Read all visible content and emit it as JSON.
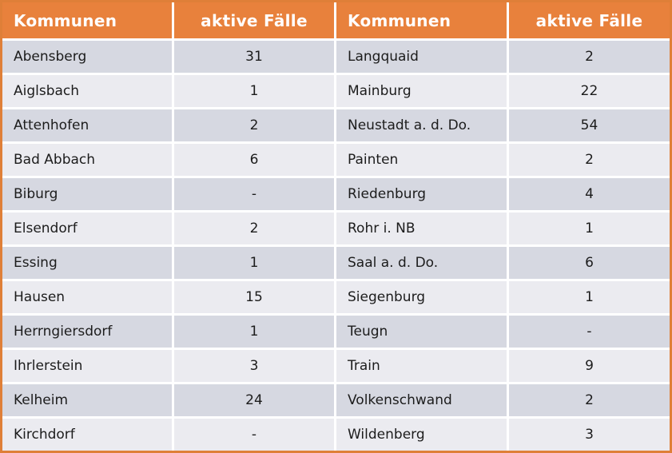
{
  "chart_data": {
    "type": "table",
    "title": "",
    "columns": [
      "Kommunen",
      "aktive Fälle",
      "Kommunen",
      "aktive Fälle"
    ],
    "rows": [
      [
        "Abensberg",
        "31",
        "Langquaid",
        "2"
      ],
      [
        "Aiglsbach",
        "1",
        "Mainburg",
        "22"
      ],
      [
        "Attenhofen",
        "2",
        "Neustadt a. d. Do.",
        "54"
      ],
      [
        "Bad Abbach",
        "6",
        "Painten",
        "2"
      ],
      [
        "Biburg",
        "-",
        "Riedenburg",
        "4"
      ],
      [
        "Elsendorf",
        "2",
        "Rohr i. NB",
        "1"
      ],
      [
        "Essing",
        "1",
        "Saal a. d. Do.",
        "6"
      ],
      [
        "Hausen",
        "15",
        "Siegenburg",
        "1"
      ],
      [
        "Herrngiersdorf",
        "1",
        "Teugn",
        "-"
      ],
      [
        "Ihrlerstein",
        "3",
        "Train",
        "9"
      ],
      [
        "Kelheim",
        "24",
        "Volkenschwand",
        "2"
      ],
      [
        "Kirchdorf",
        "-",
        "Wildenberg",
        "3"
      ]
    ]
  },
  "colors": {
    "header_bg": "#E8813C",
    "header_text": "#FFFFFF",
    "row_dark": "#D6D8E1",
    "row_light": "#EBEBF0",
    "border": "#DF7F38",
    "text": "#1C1C1C"
  }
}
